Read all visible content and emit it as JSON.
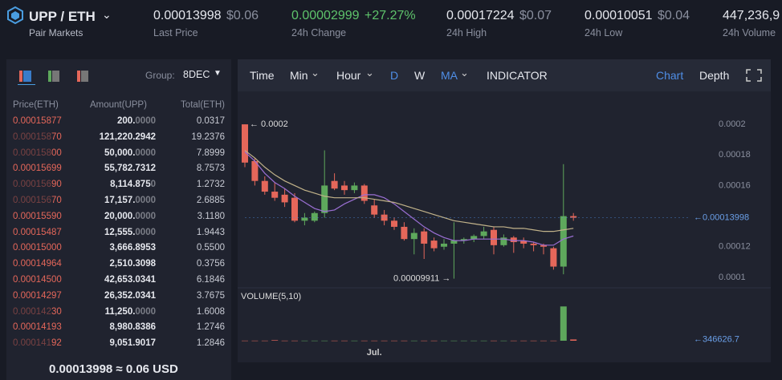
{
  "header": {
    "pair": "UPP / ETH",
    "subtitle": "Pair Markets",
    "stats": [
      {
        "value": "0.00013998",
        "fiat": "$0.06",
        "label": "Last Price"
      },
      {
        "value": "0.00002999",
        "fiat": "+27.27%",
        "label": "24h Change"
      },
      {
        "value": "0.00017224",
        "fiat": "$0.07",
        "label": "24h High"
      },
      {
        "value": "0.00010051",
        "fiat": "$0.04",
        "label": "24h Low"
      },
      {
        "value": "447,236,9",
        "label": "24h Volume"
      }
    ]
  },
  "order_book": {
    "group_label": "Group:",
    "group": "8DEC",
    "columns": [
      "Price(ETH)",
      "Amount(UPP)",
      "Total(ETH)"
    ],
    "rows": [
      [
        "0.00015877",
        "200.0000",
        "0.0317"
      ],
      [
        "0.00015870",
        "121,220.2942",
        "19.2376"
      ],
      [
        "0.00015800",
        "50,000.0000",
        "7.8999"
      ],
      [
        "0.00015699",
        "55,782.7312",
        "8.7573"
      ],
      [
        "0.00015690",
        "8,114.8750",
        "1.2732"
      ],
      [
        "0.00015670",
        "17,157.0000",
        "2.6885"
      ],
      [
        "0.00015590",
        "20,000.0000",
        "3.1180"
      ],
      [
        "0.00015487",
        "12,555.0000",
        "1.9443"
      ],
      [
        "0.00015000",
        "3,666.8953",
        "0.5500"
      ],
      [
        "0.00014964",
        "2,510.3098",
        "0.3756"
      ],
      [
        "0.00014500",
        "42,653.0341",
        "6.1846"
      ],
      [
        "0.00014297",
        "26,352.0341",
        "3.7675"
      ],
      [
        "0.00014230",
        "11,250.0000",
        "1.6008"
      ],
      [
        "0.00014193",
        "8,980.8386",
        "1.2746"
      ],
      [
        "0.00014192",
        "9,051.9017",
        "1.2846"
      ]
    ],
    "last_price": "0.00013998 ≈ 0.06 USD"
  },
  "toolbar": {
    "items": [
      "Time",
      "Min",
      "Hour",
      "D",
      "W",
      "MA",
      "INDICATOR"
    ],
    "right": [
      "Chart",
      "Depth"
    ]
  },
  "chart_data": {
    "type": "candlestick",
    "colors": {
      "up": "#5ea85c",
      "down": "#e5675a"
    },
    "ylim": [
      9.68e-05,
      0.0002184
    ],
    "yticks": [
      0.0001,
      0.00012,
      0.00016,
      0.00018,
      0.0002
    ],
    "categories": [
      null,
      null,
      null,
      null,
      null,
      null,
      null,
      null,
      null,
      null,
      null,
      null,
      null,
      "Jul.",
      null,
      null,
      null,
      null,
      null,
      null,
      null,
      null,
      null,
      null,
      null,
      null,
      null,
      null,
      null,
      null,
      null,
      null,
      null,
      null
    ],
    "open": [
      0.0002,
      0.000176,
      0.000163,
      0.000156,
      0.000154,
      0.000152,
      0.000137,
      0.000137,
      0.000142,
      0.000163,
      0.00016,
      0.000157,
      0.00016,
      0.000147,
      0.000141,
      0.000137,
      0.000133,
      0.000125,
      0.00013,
      0.000124,
      0.00012,
      0.000122,
      0.000124,
      0.000125,
      0.000127,
      0.000131,
      0.000121,
      0.000126,
      0.000124,
      0.000122,
      0.000121,
      0.000119,
      0.000107,
      0.00014
    ],
    "high": [
      0.0002,
      0.000178,
      0.000166,
      0.000162,
      0.000158,
      0.000155,
      0.000142,
      0.000143,
      0.000183,
      0.000168,
      0.000163,
      0.000162,
      0.000161,
      0.000151,
      0.000144,
      0.000139,
      0.000136,
      0.000132,
      0.000132,
      0.000126,
      0.000125,
      0.000136,
      0.000126,
      0.000128,
      0.000133,
      0.000133,
      0.000128,
      0.000127,
      0.000126,
      0.000123,
      0.000122,
      0.00012,
      0.000174,
      0.000142
    ],
    "low": [
      0.000172,
      0.00016,
      0.000154,
      0.00015,
      0.000146,
      0.000136,
      0.000134,
      0.000136,
      0.000139,
      0.000157,
      0.000154,
      0.000155,
      0.000148,
      0.000139,
      0.000134,
      0.000131,
      0.000124,
      0.000115,
      0.000112,
      0.000117,
      0.000118,
      9.911e-05,
      0.000122,
      0.000123,
      0.000125,
      0.000115,
      0.00012,
      0.000116,
      0.000119,
      0.000117,
      0.000115,
      0.000105,
      0.000102,
      0.000137
    ],
    "close": [
      0.000175,
      0.000163,
      0.000156,
      0.000152,
      0.000149,
      0.000137,
      0.000139,
      0.000142,
      0.00016,
      0.000158,
      0.000157,
      0.00016,
      0.00015,
      0.000141,
      0.000137,
      0.000133,
      0.000125,
      0.000129,
      0.000122,
      0.000119,
      0.000122,
      0.000124,
      0.000125,
      0.000127,
      0.00013,
      0.000121,
      0.000126,
      0.000123,
      0.000122,
      0.000121,
      0.00012,
      0.000107,
      0.00014,
      0.000139
    ],
    "ma": [
      {
        "color": "#9a6fd3",
        "values": [
          0.000182,
          0.000176,
          0.000168,
          0.000162,
          0.000158,
          0.000153,
          0.000149,
          0.000145,
          0.000143,
          0.000144,
          0.000148,
          0.000151,
          0.000154,
          0.000154,
          0.000152,
          0.000148,
          0.000143,
          0.000138,
          0.000133,
          0.000129,
          0.000126,
          0.000124,
          0.000124,
          0.000125,
          0.000125,
          0.000125,
          0.000125,
          0.000124,
          0.000124,
          0.000123,
          0.000121,
          0.000121,
          0.000125,
          0.000127
        ]
      },
      {
        "color": "#c2b38a",
        "values": [
          0.000183,
          0.000178,
          0.000172,
          0.000167,
          0.000163,
          0.00016,
          0.000157,
          0.000155,
          0.000153,
          0.000152,
          0.000152,
          0.000152,
          0.000152,
          0.000151,
          0.00015,
          0.000149,
          0.000147,
          0.000145,
          0.000143,
          0.000141,
          0.000139,
          0.000137,
          0.000136,
          0.000135,
          0.000134,
          0.000133,
          0.000133,
          0.000132,
          0.000132,
          0.000131,
          0.00013,
          0.00013,
          0.000131,
          0.000132
        ]
      }
    ],
    "volume": {
      "title": "VOLUME(5,10)",
      "vlim": [
        0,
        10000000
      ],
      "values": [
        30000,
        30000,
        30000,
        150000,
        30000,
        30000,
        30000,
        30000,
        30000,
        30000,
        30000,
        30000,
        30000,
        30000,
        30000,
        30000,
        30000,
        30000,
        30000,
        30000,
        30000,
        30000,
        30000,
        30000,
        30000,
        30000,
        30000,
        30000,
        30000,
        30000,
        30000,
        30000,
        9500000,
        346626.7
      ]
    },
    "annotations": {
      "high": "← 0.0002",
      "low": "0.00009911 →",
      "price": "←0.00013998",
      "volume": "←346626.7"
    }
  }
}
